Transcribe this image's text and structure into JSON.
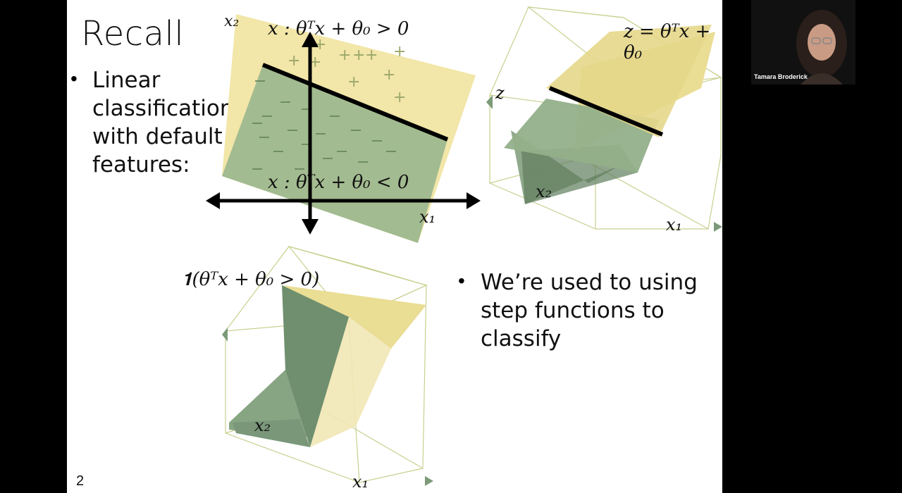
{
  "slide": {
    "title": "Recall",
    "bullet1": [
      "Linear",
      "classification",
      "with default",
      "features:"
    ],
    "bullet2": [
      "We’re used to using",
      "step functions to",
      "classify"
    ],
    "page_number": "2"
  },
  "plot2d": {
    "x1_label": "x₁",
    "x2_label": "x₂",
    "pos_region": "x : θᵀx + θ₀ > 0",
    "neg_region": "x : θᵀx + θ₀ < 0"
  },
  "plot3d_top": {
    "surface_label": "z = θᵀx + θ₀",
    "z_label": "z",
    "x1_label": "x₁",
    "x2_label": "x₂"
  },
  "plot3d_bottom": {
    "function_label": "𝟏(θᵀx + θ₀ > 0)",
    "x1_label": "x₁",
    "x2_label": "x₂"
  },
  "video": {
    "participant_name": "Tamara Broderick"
  },
  "colors": {
    "positive_region": "#f2e6a8",
    "negative_region": "#9fb88d",
    "surface_dark": "#7c9a78",
    "surface_light": "#eadd94",
    "box_edge": "#c9cf8e"
  }
}
